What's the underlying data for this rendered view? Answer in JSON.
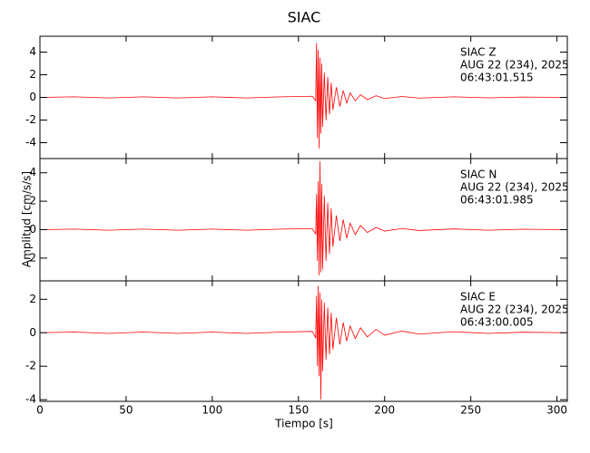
{
  "chart_data": {
    "type": "line",
    "title": "SIAC",
    "xlabel": "Tiempo [s]",
    "ylabel": "Amplitud [cm/s/s]",
    "xlim": [
      0,
      306
    ],
    "xticks": [
      0,
      50,
      100,
      150,
      200,
      250,
      300
    ],
    "color": "#ff0000",
    "panels": [
      {
        "annotations": [
          "SIAC   Z",
          "AUG 22 (234), 2025",
          "06:43:01.515"
        ],
        "ylim": [
          -5.4,
          5.4
        ],
        "yticks": [
          -4,
          -2,
          0,
          2,
          4
        ],
        "x": [
          0,
          20,
          40,
          60,
          80,
          100,
          120,
          140,
          158,
          160,
          160.5,
          161,
          161.5,
          162,
          162.5,
          163,
          163.5,
          164,
          165,
          166,
          167,
          168,
          169,
          170,
          172,
          174,
          176,
          178,
          180,
          183,
          186,
          190,
          195,
          200,
          210,
          220,
          240,
          260,
          280,
          306
        ],
        "values": [
          0,
          0.05,
          -0.05,
          0.05,
          -0.05,
          0.05,
          -0.05,
          0.05,
          0.1,
          -0.3,
          4.8,
          -3.6,
          4.2,
          -4.5,
          3.5,
          -3.2,
          3.0,
          -2.6,
          2.2,
          -2.0,
          1.8,
          -1.5,
          1.3,
          -1.1,
          0.9,
          -0.8,
          0.6,
          -0.5,
          0.4,
          -0.3,
          0.25,
          -0.2,
          0.15,
          -0.1,
          0.08,
          -0.06,
          0.05,
          -0.04,
          0.03,
          0
        ]
      },
      {
        "annotations": [
          "SIAC   N",
          "AUG 22 (234), 2025",
          "06:43:01.985"
        ],
        "ylim": [
          -3.6,
          5.0
        ],
        "yticks": [
          -2,
          0,
          2,
          4
        ],
        "x": [
          0,
          20,
          40,
          60,
          80,
          100,
          120,
          140,
          158,
          160,
          160.5,
          161,
          161.5,
          162,
          162.5,
          163,
          163.5,
          164,
          165,
          166,
          167,
          168,
          169,
          170,
          172,
          174,
          176,
          178,
          180,
          183,
          186,
          190,
          195,
          200,
          210,
          220,
          240,
          260,
          280,
          306
        ],
        "values": [
          0,
          0.04,
          -0.04,
          0.04,
          -0.04,
          0.04,
          -0.04,
          0.04,
          0.08,
          -0.3,
          2.5,
          -2.2,
          3.4,
          -3.2,
          4.8,
          -3.0,
          3.2,
          -2.8,
          2.4,
          -2.2,
          1.9,
          -1.7,
          1.5,
          -1.2,
          1.0,
          -0.8,
          0.7,
          -0.6,
          0.45,
          -0.35,
          0.3,
          -0.2,
          0.15,
          -0.1,
          0.08,
          -0.06,
          0.05,
          -0.04,
          0.03,
          0
        ]
      },
      {
        "annotations": [
          "SIAC   E",
          "AUG 22 (234), 2025",
          "06:43:00.005"
        ],
        "ylim": [
          -4.1,
          3.1
        ],
        "yticks": [
          -4,
          -2,
          0,
          2
        ],
        "x": [
          0,
          20,
          40,
          60,
          80,
          100,
          120,
          140,
          158,
          160,
          160.5,
          161,
          161.5,
          162,
          162.5,
          163,
          163.5,
          164,
          165,
          166,
          167,
          168,
          169,
          170,
          172,
          174,
          176,
          178,
          180,
          183,
          186,
          190,
          195,
          200,
          210,
          220,
          240,
          260,
          280,
          306
        ],
        "values": [
          0,
          0.04,
          -0.04,
          0.04,
          -0.04,
          0.04,
          -0.04,
          0.04,
          0.08,
          -0.3,
          2.2,
          -2.0,
          2.8,
          -2.6,
          2.4,
          -4.0,
          2.0,
          -2.3,
          1.8,
          -1.6,
          1.5,
          -1.3,
          1.2,
          -1.0,
          0.9,
          -0.7,
          0.6,
          -0.5,
          0.4,
          -0.35,
          0.3,
          -0.25,
          0.2,
          -0.15,
          0.1,
          -0.08,
          0.06,
          -0.04,
          0.03,
          0
        ]
      }
    ]
  }
}
